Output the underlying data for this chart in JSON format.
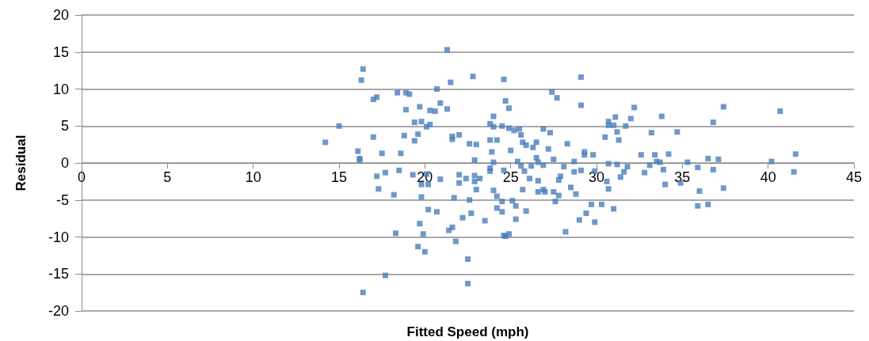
{
  "chart_data": {
    "type": "scatter",
    "xlabel": "Fitted Speed (mph)",
    "ylabel": "Residual",
    "marker": "square",
    "grid": "y",
    "xlim": [
      0,
      45
    ],
    "xticks": [
      0,
      5,
      10,
      15,
      20,
      25,
      30,
      35,
      40,
      45
    ],
    "ylim": [
      -20,
      20
    ],
    "yticks": [
      -20,
      -15,
      -10,
      -5,
      0,
      5,
      10,
      15,
      20
    ],
    "series": [
      {
        "color": "#4a7ebb",
        "x": [
          21.3,
          16.4,
          16.3,
          22.8,
          21.5,
          20.7,
          18.4,
          18.9,
          19.1,
          17.0,
          17.2,
          20.9,
          21.3,
          19.7,
          18.9,
          20.3,
          20.6,
          24.6,
          24.7,
          19.4,
          19.8,
          20.1,
          20.3,
          15.0,
          14.2,
          17.0,
          18.8,
          19.6,
          19.4,
          21.6,
          22.0,
          21.6,
          22.6,
          23.0,
          23.8,
          24.0,
          24.0,
          24.5,
          23.8,
          24.2,
          23.9,
          24.0,
          16.1,
          16.2,
          16.2,
          17.5,
          18.6,
          22.9,
          17.2,
          17.7,
          18.5,
          19.3,
          20.1,
          20.9,
          22.0,
          22.0,
          22.4,
          22.9,
          22.9,
          23.2,
          23.8,
          23.8,
          24.6,
          17.3,
          18.2,
          19.8,
          20.2,
          19.8,
          23.0,
          21.7,
          22.6,
          24.0,
          24.2,
          24.5,
          24.2,
          24.5,
          20.2,
          20.7,
          22.2,
          22.7,
          23.5,
          19.7,
          21.4,
          21.6,
          18.3,
          19.9,
          24.6,
          21.8,
          19.6,
          20.0,
          22.5,
          17.7,
          22.5,
          16.4,
          29.1,
          27.4,
          27.7,
          24.9,
          29.1,
          32.2,
          24.9,
          25.2,
          25.5,
          25.6,
          25.7,
          25.9,
          26.3,
          26.5,
          26.9,
          27.3,
          25.0,
          27.2,
          28.3,
          27.5,
          26.5,
          26.6,
          26.9,
          25.4,
          25.6,
          25.8,
          26.2,
          26.1,
          26.6,
          26.9,
          27.0,
          26.6,
          25.7,
          27.9,
          27.8,
          28.1,
          28.7,
          28.7,
          29.3,
          29.3,
          29.8,
          29.1,
          29.9,
          28.5,
          28.8,
          27.5,
          27.8,
          27.6,
          25.1,
          25.3,
          25.9,
          25.3,
          24.7,
          24.9,
          28.2,
          29.0,
          29.4,
          29.7,
          29.9,
          30.3,
          30.6,
          30.7,
          31.0,
          30.7,
          31.2,
          31.4,
          31.6,
          31.8,
          30.5,
          30.7,
          30.7,
          31.0,
          31.1,
          31.2,
          31.3,
          31.7,
          32.0,
          32.6,
          32.8,
          33.1,
          33.4,
          33.5,
          33.7,
          33.9,
          34.0,
          33.2,
          33.8,
          34.2,
          34.7,
          35.3,
          34.9,
          35.9,
          36.0,
          35.9,
          36.5,
          36.5,
          36.8,
          36.8,
          37.1,
          37.4,
          37.4,
          40.2,
          40.7,
          41.6,
          41.5
        ],
        "values": [
          15.3,
          12.7,
          11.2,
          11.7,
          10.9,
          10.0,
          9.5,
          9.5,
          9.3,
          8.6,
          8.9,
          8.1,
          7.3,
          7.6,
          7.2,
          7.1,
          7.0,
          11.3,
          8.4,
          5.5,
          5.6,
          4.9,
          5.2,
          5.0,
          2.8,
          3.5,
          3.7,
          3.9,
          3.0,
          3.2,
          3.8,
          3.6,
          2.6,
          2.5,
          5.3,
          6.3,
          4.9,
          5.0,
          3.1,
          3.1,
          1.5,
          0.1,
          1.6,
          0.6,
          0.4,
          1.3,
          1.3,
          0.4,
          -1.8,
          -1.3,
          -1.0,
          -1.6,
          -1.5,
          -2.2,
          -1.6,
          -2.7,
          -2.1,
          -1.7,
          -2.5,
          -2.1,
          -0.7,
          -1.1,
          -1.0,
          -3.5,
          -4.3,
          -2.9,
          -2.9,
          -4.6,
          -3.6,
          -4.7,
          -5.0,
          -3.7,
          -4.5,
          -5.2,
          -6.1,
          -6.6,
          -6.3,
          -6.6,
          -7.4,
          -6.8,
          -7.8,
          -8.2,
          -9.1,
          -8.7,
          -9.5,
          -9.6,
          -9.8,
          -10.6,
          -11.3,
          -12.0,
          -13.0,
          -15.2,
          -16.3,
          -17.5,
          11.6,
          9.6,
          8.8,
          7.4,
          7.8,
          7.5,
          4.7,
          4.4,
          4.6,
          3.8,
          2.8,
          2.4,
          2.1,
          2.8,
          4.6,
          4.1,
          1.7,
          1.9,
          2.6,
          0.5,
          0.7,
          0.1,
          -0.3,
          0.2,
          -0.4,
          -1.1,
          -0.4,
          -2.1,
          -2.4,
          -3.6,
          -3.9,
          -3.9,
          -3.6,
          -1.8,
          -2.3,
          -0.5,
          -1.2,
          0.2,
          1.1,
          1.5,
          1.1,
          -1.0,
          -1.1,
          -3.3,
          -4.2,
          -3.9,
          -4.4,
          -5.2,
          -5.1,
          -5.8,
          -6.5,
          -7.6,
          -9.9,
          -9.6,
          -9.3,
          -7.7,
          -6.8,
          -5.6,
          -8.0,
          -5.6,
          -2.5,
          -3.5,
          -6.2,
          -0.1,
          -0.2,
          -1.9,
          -1.2,
          -0.5,
          3.5,
          5.6,
          5.1,
          5.1,
          6.2,
          4.2,
          3.1,
          5.0,
          6.0,
          1.1,
          -1.3,
          -0.3,
          1.1,
          0.2,
          0.1,
          -0.9,
          -2.9,
          4.1,
          6.3,
          1.2,
          4.2,
          0.1,
          -2.7,
          -0.6,
          -3.8,
          -5.8,
          -5.6,
          0.6,
          5.5,
          -0.9,
          0.5,
          -3.4,
          7.6,
          0.2,
          7.0,
          1.2,
          -1.2
        ]
      }
    ]
  }
}
